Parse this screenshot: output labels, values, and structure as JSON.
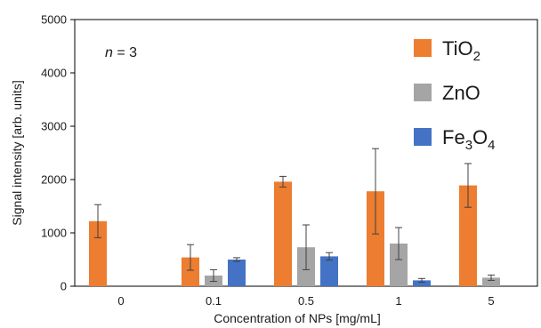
{
  "chart_data": {
    "type": "bar",
    "categories": [
      "0",
      "0.1",
      "0.5",
      "1",
      "5"
    ],
    "xlabel": "Concentration of NPs [mg/mL]",
    "ylabel": "Signal intensity [arb. units]",
    "ylim": [
      0,
      5000
    ],
    "yticks": [
      "0",
      "1000",
      "2000",
      "3000",
      "4000",
      "5000"
    ],
    "grid": false,
    "legend_position": "top-right",
    "annotation": {
      "italic": "n",
      "text": " = 3"
    },
    "series": [
      {
        "name": "TiO2",
        "label_base": "TiO",
        "label_sub": "2",
        "color": "#ED7D31",
        "values": [
          1220,
          540,
          1960,
          1780,
          1890
        ],
        "errors": [
          310,
          240,
          100,
          800,
          410
        ]
      },
      {
        "name": "ZnO",
        "label_base": "ZnO",
        "label_sub": "",
        "color": "#A5A5A5",
        "values": [
          0,
          200,
          730,
          800,
          160
        ],
        "errors": [
          0,
          110,
          420,
          300,
          50
        ]
      },
      {
        "name": "Fe3O4",
        "label_base": "Fe",
        "label_sub": "3",
        "label_mid": "O",
        "label_sub2": "4",
        "color": "#4472C4",
        "values": [
          0,
          500,
          560,
          110,
          0
        ],
        "errors": [
          0,
          35,
          70,
          35,
          0
        ]
      }
    ]
  }
}
